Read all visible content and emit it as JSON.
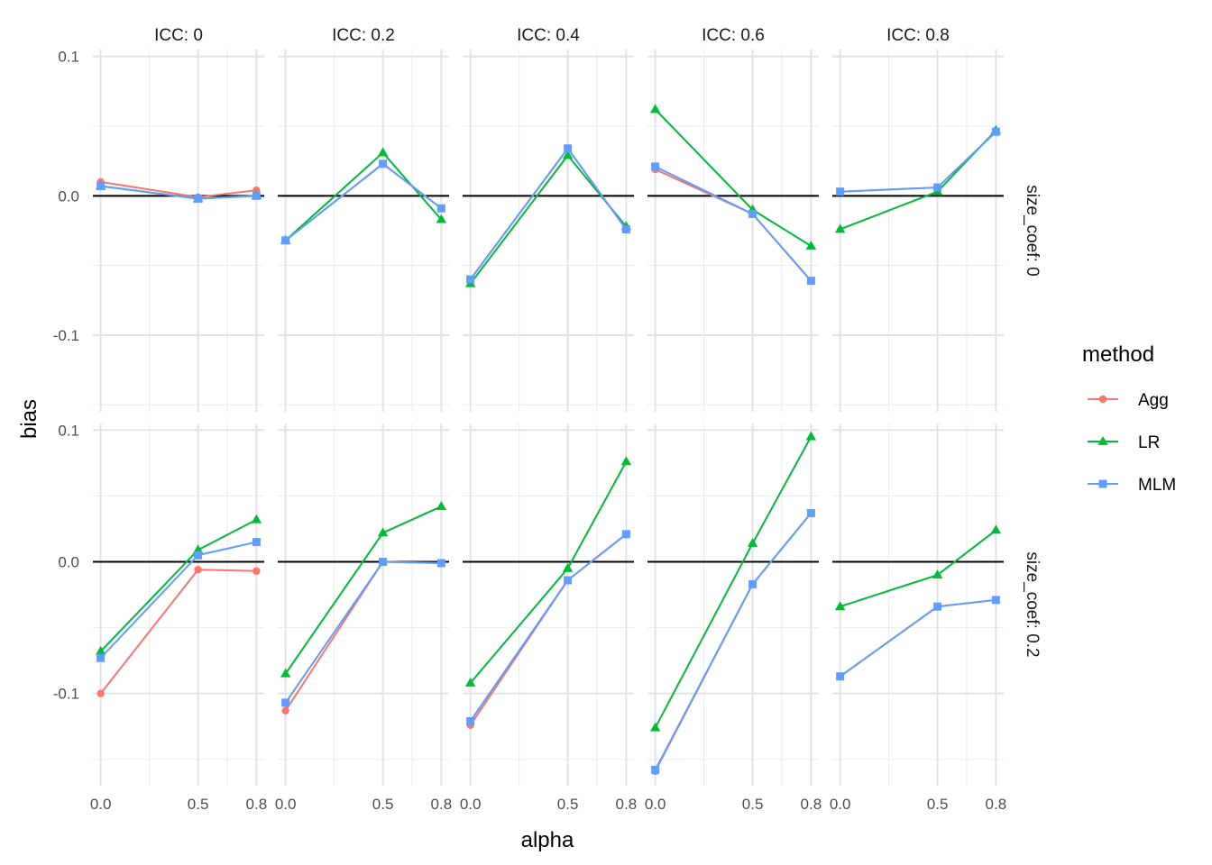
{
  "chart_data": {
    "type": "line",
    "xlabel": "alpha",
    "ylabel": "bias",
    "col_facet_labels": [
      "ICC: 0",
      "ICC: 0.2",
      "ICC: 0.4",
      "ICC: 0.6",
      "ICC: 0.8"
    ],
    "row_facet_labels": [
      "size_coef: 0",
      "size_coef: 0.2"
    ],
    "x": [
      0.0,
      0.5,
      0.8
    ],
    "x_ticks": [
      0.0,
      0.5,
      0.8
    ],
    "x_tick_labels": [
      "0.0",
      "0.5",
      "0.8"
    ],
    "xlim": [
      -0.04,
      0.84
    ],
    "rows": [
      {
        "ylim": [
          -0.155,
          0.105
        ],
        "y_ticks": [
          0.1,
          0.0,
          -0.1
        ],
        "y_tick_labels": [
          "0.1",
          "0.0",
          "-0.1"
        ]
      },
      {
        "ylim": [
          -0.17,
          0.105
        ],
        "y_ticks": [
          0.1,
          0.0,
          -0.1
        ],
        "y_tick_labels": [
          "0.1",
          "0.0",
          "-0.1"
        ]
      }
    ],
    "reference_line_y": 0,
    "legend": {
      "title": "method",
      "position": "right",
      "entries": [
        {
          "name": "Agg",
          "color": "#F8766D",
          "shape": "circle"
        },
        {
          "name": "LR",
          "color": "#00BA38",
          "shape": "triangle"
        },
        {
          "name": "MLM",
          "color": "#619CFF",
          "shape": "square"
        }
      ]
    },
    "series_draw_order": [
      "Agg",
      "LR",
      "MLM"
    ],
    "panels": [
      {
        "row": 0,
        "col": 0,
        "series": {
          "Agg": [
            0.01,
            -0.001,
            0.004
          ],
          "LR": [
            0.007,
            -0.002,
            0.0
          ],
          "MLM": [
            0.007,
            -0.002,
            0.0
          ]
        }
      },
      {
        "row": 0,
        "col": 1,
        "series": {
          "Agg": [
            -0.032,
            0.023,
            -0.009
          ],
          "LR": [
            -0.032,
            0.031,
            -0.017
          ],
          "MLM": [
            -0.032,
            0.023,
            -0.009
          ]
        }
      },
      {
        "row": 0,
        "col": 2,
        "series": {
          "Agg": [
            -0.06,
            0.034,
            -0.024
          ],
          "LR": [
            -0.063,
            0.029,
            -0.022
          ],
          "MLM": [
            -0.06,
            0.034,
            -0.024
          ]
        }
      },
      {
        "row": 0,
        "col": 3,
        "series": {
          "Agg": [
            0.019,
            -0.013,
            -0.061
          ],
          "LR": [
            0.062,
            -0.01,
            -0.036
          ],
          "MLM": [
            0.021,
            -0.013,
            -0.061
          ]
        }
      },
      {
        "row": 0,
        "col": 4,
        "series": {
          "Agg": [
            0.003,
            0.006,
            0.046
          ],
          "LR": [
            -0.024,
            0.003,
            0.047
          ],
          "MLM": [
            0.003,
            0.006,
            0.046
          ]
        }
      },
      {
        "row": 1,
        "col": 0,
        "series": {
          "Agg": [
            -0.1,
            -0.006,
            -0.007
          ],
          "LR": [
            -0.068,
            0.009,
            0.032
          ],
          "MLM": [
            -0.073,
            0.005,
            0.015
          ]
        }
      },
      {
        "row": 1,
        "col": 1,
        "series": {
          "Agg": [
            -0.113,
            0.0,
            -0.001
          ],
          "LR": [
            -0.085,
            0.022,
            0.042
          ],
          "MLM": [
            -0.107,
            0.0,
            -0.001
          ]
        }
      },
      {
        "row": 1,
        "col": 2,
        "series": {
          "Agg": [
            -0.124,
            -0.014,
            0.021
          ],
          "LR": [
            -0.092,
            -0.005,
            0.076
          ],
          "MLM": [
            -0.121,
            -0.014,
            0.021
          ]
        }
      },
      {
        "row": 1,
        "col": 3,
        "series": {
          "Agg": [
            -0.159,
            -0.017,
            0.037
          ],
          "LR": [
            -0.126,
            0.014,
            0.095
          ],
          "MLM": [
            -0.158,
            -0.017,
            0.037
          ]
        }
      },
      {
        "row": 1,
        "col": 4,
        "series": {
          "Agg": [
            -0.087,
            -0.034,
            -0.029
          ],
          "LR": [
            -0.034,
            -0.01,
            0.024
          ],
          "MLM": [
            -0.087,
            -0.034,
            -0.029
          ]
        }
      }
    ]
  }
}
